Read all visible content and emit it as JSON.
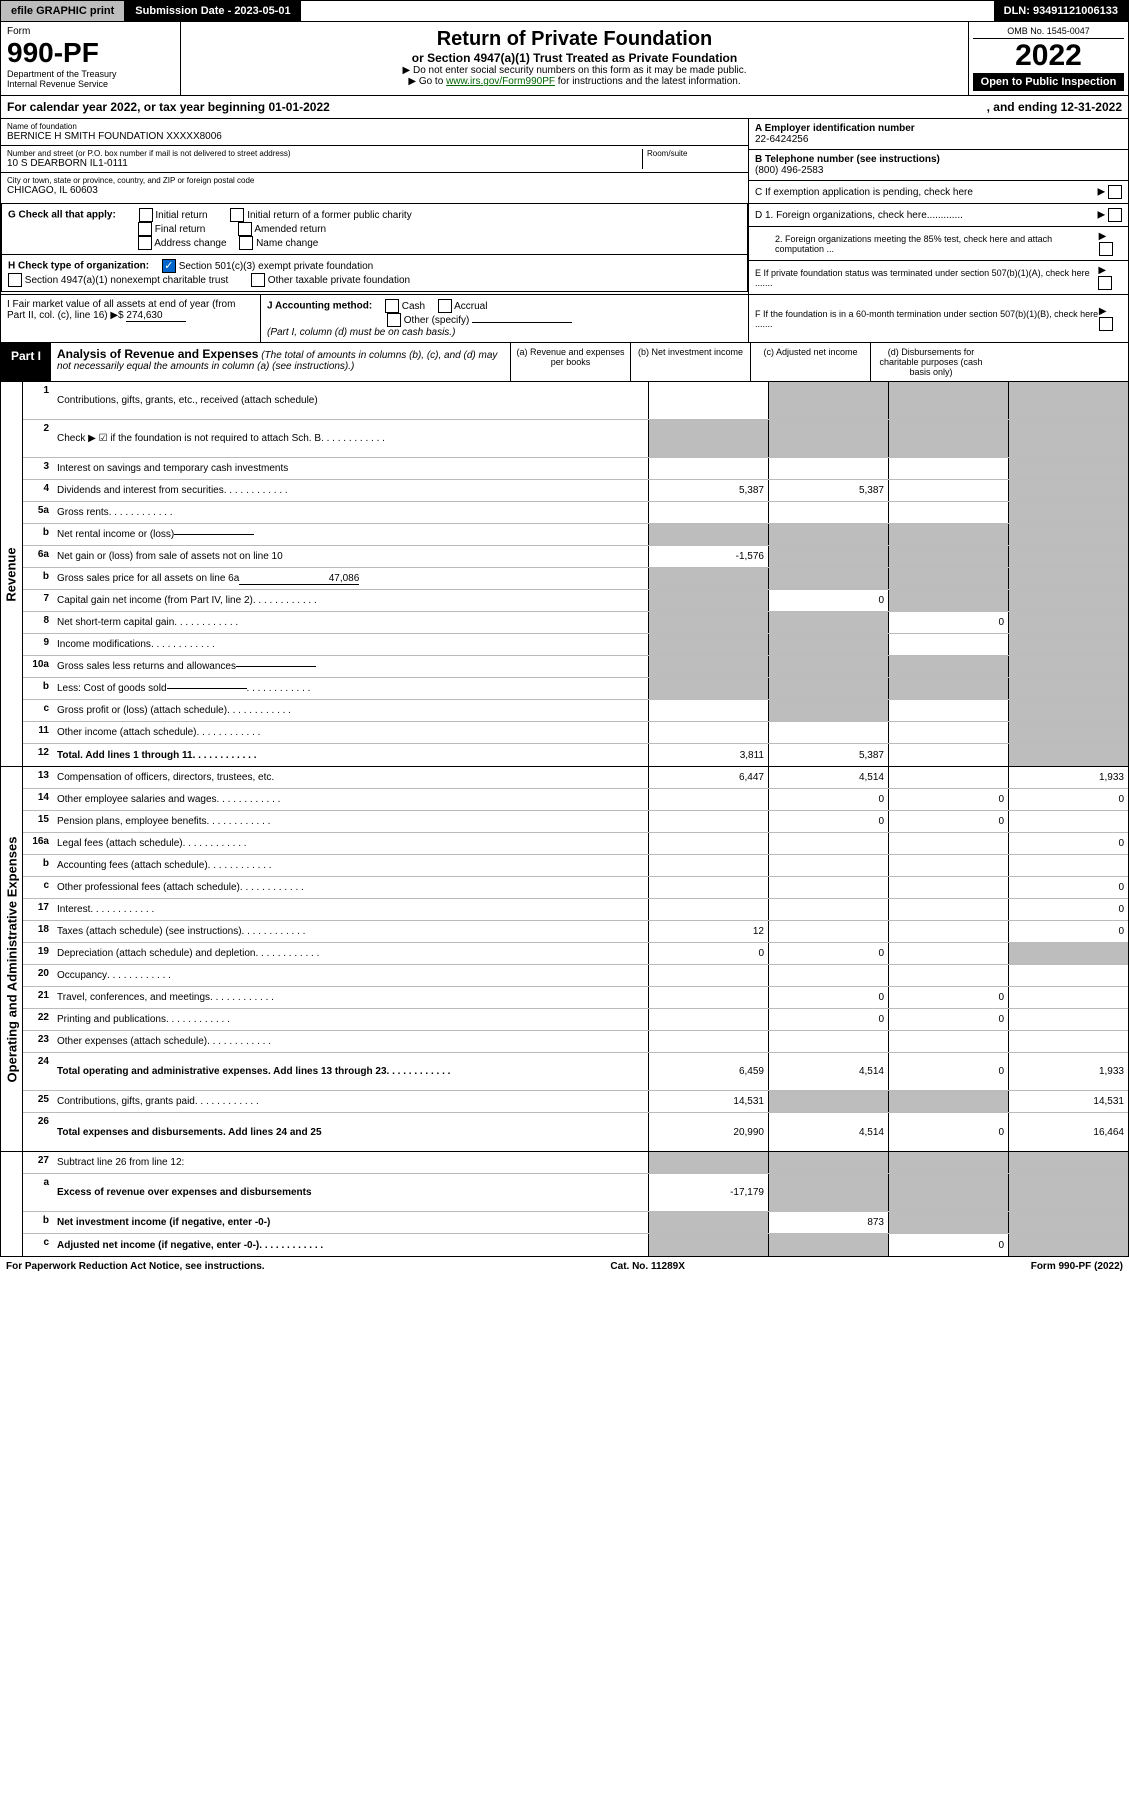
{
  "topbar": {
    "efile": "efile GRAPHIC print",
    "sub": "Submission Date - 2023-05-01",
    "dln": "DLN: 93491121006133"
  },
  "head": {
    "form": "Form",
    "num": "990-PF",
    "dept": "Department of the Treasury\nInternal Revenue Service",
    "title": "Return of Private Foundation",
    "sub": "or Section 4947(a)(1) Trust Treated as Private Foundation",
    "note1": "▶ Do not enter social security numbers on this form as it may be made public.",
    "note2": "▶ Go to ",
    "link": "www.irs.gov/Form990PF",
    "note3": " for instructions and the latest information.",
    "omb": "OMB No. 1545-0047",
    "yr": "2022",
    "open": "Open to Public Inspection"
  },
  "cal": {
    "a": "For calendar year 2022, or tax year beginning 01-01-2022",
    "b": ", and ending 12-31-2022"
  },
  "info": {
    "name_l": "Name of foundation",
    "name": "BERNICE H SMITH FOUNDATION XXXXX8006",
    "addr_l": "Number and street (or P.O. box number if mail is not delivered to street address)",
    "room_l": "Room/suite",
    "addr": "10 S DEARBORN IL1-0111",
    "city_l": "City or town, state or province, country, and ZIP or foreign postal code",
    "city": "CHICAGO, IL  60603",
    "A_l": "A Employer identification number",
    "A": "22-6424256",
    "B_l": "B Telephone number (see instructions)",
    "B": "(800) 496-2583",
    "C": "C If exemption application is pending, check here",
    "D1": "D 1. Foreign organizations, check here.............",
    "D2": "2. Foreign organizations meeting the 85% test, check here and attach computation ...",
    "E": "E If private foundation status was terminated under section 507(b)(1)(A), check here .......",
    "F": "F If the foundation is in a 60-month termination under section 507(b)(1)(B), check here ......."
  },
  "G": {
    "label": "G Check all that apply:",
    "o1": "Initial return",
    "o2": "Initial return of a former public charity",
    "o3": "Final return",
    "o4": "Amended return",
    "o5": "Address change",
    "o6": "Name change"
  },
  "H": {
    "label": "H Check type of organization:",
    "o1": "Section 501(c)(3) exempt private foundation",
    "o2": "Section 4947(a)(1) nonexempt charitable trust",
    "o3": "Other taxable private foundation"
  },
  "I": {
    "label": "I Fair market value of all assets at end of year (from Part II, col. (c), line 16) ▶$",
    "val": "274,630"
  },
  "J": {
    "label": "J Accounting method:",
    "o1": "Cash",
    "o2": "Accrual",
    "o3": "Other (specify)",
    "note": "(Part I, column (d) must be on cash basis.)"
  },
  "part1": {
    "tab": "Part I",
    "title": "Analysis of Revenue and Expenses",
    "note": "(The total of amounts in columns (b), (c), and (d) may not necessarily equal the amounts in column (a) (see instructions).)",
    "cols": {
      "a": "(a)  Revenue and expenses per books",
      "b": "(b)  Net investment income",
      "c": "(c)  Adjusted net income",
      "d": "(d)  Disbursements for charitable purposes (cash basis only)"
    }
  },
  "rev_label": "Revenue",
  "exp_label": "Operating and Administrative Expenses",
  "rows": [
    {
      "n": "1",
      "l": "Contributions, gifts, grants, etc., received (attach schedule)",
      "h": true,
      "a": "",
      "b": "g",
      "c": "g",
      "d": "g"
    },
    {
      "n": "2",
      "l": "Check ▶ ☑ if the foundation is not required to attach Sch. B",
      "h": true,
      "a": "g",
      "b": "g",
      "c": "g",
      "d": "g",
      "dots": true
    },
    {
      "n": "3",
      "l": "Interest on savings and temporary cash investments",
      "a": "",
      "b": "",
      "c": "",
      "d": "g"
    },
    {
      "n": "4",
      "l": "Dividends and interest from securities",
      "a": "5,387",
      "b": "5,387",
      "c": "",
      "d": "g",
      "dots": true
    },
    {
      "n": "5a",
      "l": "Gross rents",
      "a": "",
      "b": "",
      "c": "",
      "d": "g",
      "dots": true
    },
    {
      "n": "b",
      "l": "Net rental income or (loss)",
      "a": "g",
      "b": "g",
      "c": "g",
      "d": "g",
      "uline": true
    },
    {
      "n": "6a",
      "l": "Net gain or (loss) from sale of assets not on line 10",
      "a": "-1,576",
      "b": "g",
      "c": "g",
      "d": "g"
    },
    {
      "n": "b",
      "l": "Gross sales price for all assets on line 6a",
      "a": "g",
      "b": "g",
      "c": "g",
      "d": "g",
      "inline": "47,086"
    },
    {
      "n": "7",
      "l": "Capital gain net income (from Part IV, line 2)",
      "a": "g",
      "b": "0",
      "c": "g",
      "d": "g",
      "dots": true
    },
    {
      "n": "8",
      "l": "Net short-term capital gain",
      "a": "g",
      "b": "g",
      "c": "0",
      "d": "g",
      "dots": true
    },
    {
      "n": "9",
      "l": "Income modifications",
      "a": "g",
      "b": "g",
      "c": "",
      "d": "g",
      "dots": true
    },
    {
      "n": "10a",
      "l": "Gross sales less returns and allowances",
      "a": "g",
      "b": "g",
      "c": "g",
      "d": "g",
      "uline": true
    },
    {
      "n": "b",
      "l": "Less: Cost of goods sold",
      "a": "g",
      "b": "g",
      "c": "g",
      "d": "g",
      "uline": true,
      "dots": true
    },
    {
      "n": "c",
      "l": "Gross profit or (loss) (attach schedule)",
      "a": "",
      "b": "g",
      "c": "",
      "d": "g",
      "dots": true
    },
    {
      "n": "11",
      "l": "Other income (attach schedule)",
      "a": "",
      "b": "",
      "c": "",
      "d": "g",
      "dots": true
    },
    {
      "n": "12",
      "l": "Total. Add lines 1 through 11",
      "a": "3,811",
      "b": "5,387",
      "c": "",
      "d": "g",
      "bold": true,
      "dots": true
    }
  ],
  "exp_rows": [
    {
      "n": "13",
      "l": "Compensation of officers, directors, trustees, etc.",
      "a": "6,447",
      "b": "4,514",
      "c": "",
      "d": "1,933"
    },
    {
      "n": "14",
      "l": "Other employee salaries and wages",
      "a": "",
      "b": "0",
      "c": "0",
      "d": "0",
      "dots": true
    },
    {
      "n": "15",
      "l": "Pension plans, employee benefits",
      "a": "",
      "b": "0",
      "c": "0",
      "d": "",
      "dots": true
    },
    {
      "n": "16a",
      "l": "Legal fees (attach schedule)",
      "a": "",
      "b": "",
      "c": "",
      "d": "0",
      "dots": true
    },
    {
      "n": "b",
      "l": "Accounting fees (attach schedule)",
      "a": "",
      "b": "",
      "c": "",
      "d": "",
      "dots": true
    },
    {
      "n": "c",
      "l": "Other professional fees (attach schedule)",
      "a": "",
      "b": "",
      "c": "",
      "d": "0",
      "dots": true
    },
    {
      "n": "17",
      "l": "Interest",
      "a": "",
      "b": "",
      "c": "",
      "d": "0",
      "dots": true
    },
    {
      "n": "18",
      "l": "Taxes (attach schedule) (see instructions)",
      "a": "12",
      "b": "",
      "c": "",
      "d": "0",
      "dots": true
    },
    {
      "n": "19",
      "l": "Depreciation (attach schedule) and depletion",
      "a": "0",
      "b": "0",
      "c": "",
      "d": "g",
      "dots": true
    },
    {
      "n": "20",
      "l": "Occupancy",
      "a": "",
      "b": "",
      "c": "",
      "d": "",
      "dots": true
    },
    {
      "n": "21",
      "l": "Travel, conferences, and meetings",
      "a": "",
      "b": "0",
      "c": "0",
      "d": "",
      "dots": true
    },
    {
      "n": "22",
      "l": "Printing and publications",
      "a": "",
      "b": "0",
      "c": "0",
      "d": "",
      "dots": true
    },
    {
      "n": "23",
      "l": "Other expenses (attach schedule)",
      "a": "",
      "b": "",
      "c": "",
      "d": "",
      "dots": true
    },
    {
      "n": "24",
      "l": "Total operating and administrative expenses. Add lines 13 through 23",
      "a": "6,459",
      "b": "4,514",
      "c": "0",
      "d": "1,933",
      "bold": true,
      "h": true,
      "dots": true
    },
    {
      "n": "25",
      "l": "Contributions, gifts, grants paid",
      "a": "14,531",
      "b": "g",
      "c": "g",
      "d": "14,531",
      "dots": true
    },
    {
      "n": "26",
      "l": "Total expenses and disbursements. Add lines 24 and 25",
      "a": "20,990",
      "b": "4,514",
      "c": "0",
      "d": "16,464",
      "bold": true,
      "h": true
    }
  ],
  "bot_rows": [
    {
      "n": "27",
      "l": "Subtract line 26 from line 12:",
      "a": "g",
      "b": "g",
      "c": "g",
      "d": "g"
    },
    {
      "n": "a",
      "l": "Excess of revenue over expenses and disbursements",
      "a": "-17,179",
      "b": "g",
      "c": "g",
      "d": "g",
      "bold": true,
      "h": true
    },
    {
      "n": "b",
      "l": "Net investment income (if negative, enter -0-)",
      "a": "g",
      "b": "873",
      "c": "g",
      "d": "g",
      "bold": true
    },
    {
      "n": "c",
      "l": "Adjusted net income (if negative, enter -0-)",
      "a": "g",
      "b": "g",
      "c": "0",
      "d": "g",
      "bold": true,
      "dots": true
    }
  ],
  "footer": {
    "l": "For Paperwork Reduction Act Notice, see instructions.",
    "c": "Cat. No. 11289X",
    "r": "Form 990-PF (2022)"
  }
}
